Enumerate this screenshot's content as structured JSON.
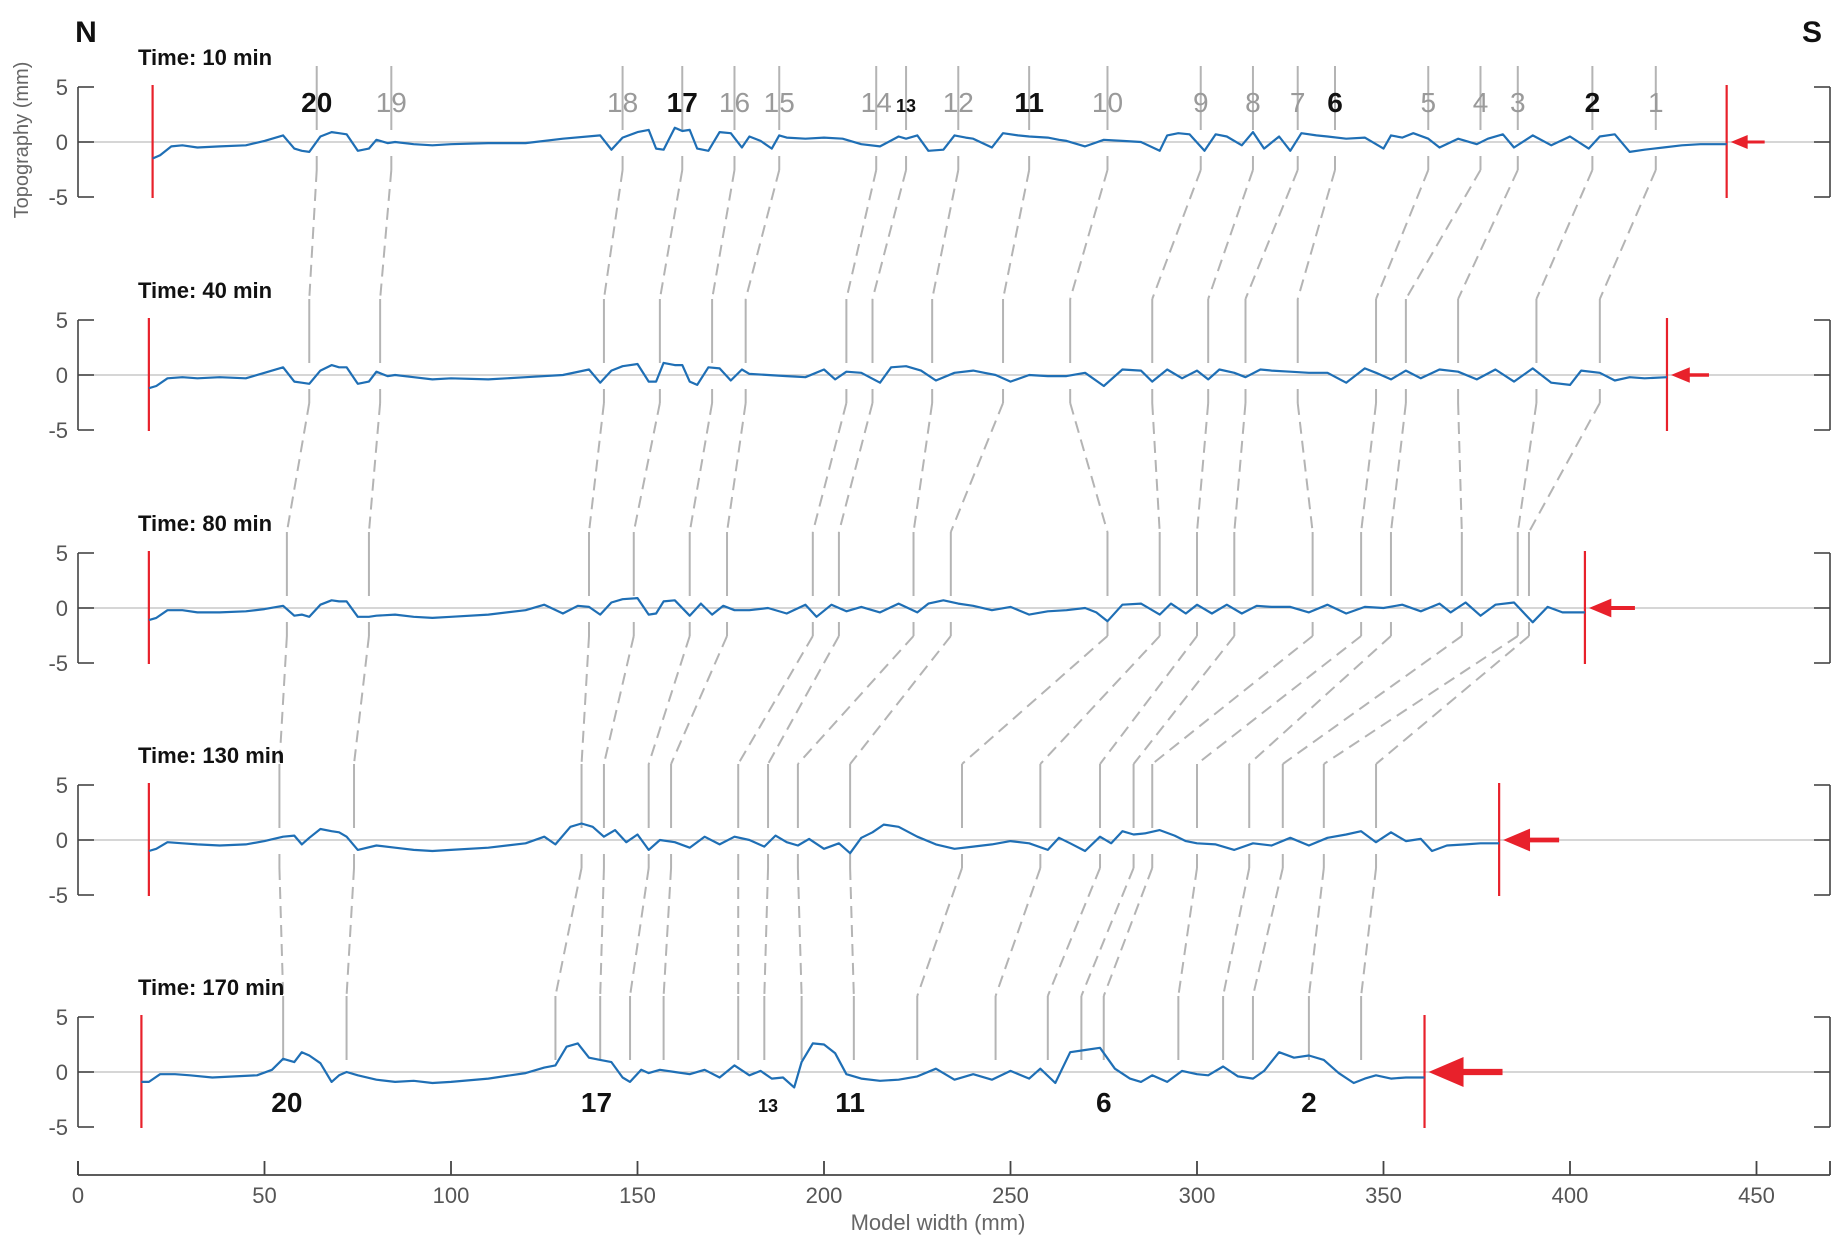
{
  "chart_data": {
    "type": "line",
    "north_label": "N",
    "south_label": "S",
    "xlabel": "Model width (mm)",
    "ylabel": "Topography (mm)",
    "xlim": [
      0,
      470
    ],
    "ylim": [
      -5,
      5
    ],
    "x_ticks": [
      0,
      50,
      100,
      150,
      200,
      250,
      300,
      350,
      400,
      450
    ],
    "y_ticks": [
      -5,
      0,
      5
    ],
    "colors": {
      "profile": "#1f6fb5",
      "backstop": "#e8212b",
      "correlation": "#b4b4b4",
      "axis": "#444444"
    },
    "panels": [
      {
        "title": "Time: 10 min",
        "left_wall": 20,
        "right_wall": 442,
        "arrow_size": 1,
        "x": [
          20,
          22,
          25,
          28,
          32,
          38,
          45,
          50,
          55,
          58,
          60,
          62,
          65,
          68,
          70,
          72,
          75,
          78,
          80,
          83,
          85,
          90,
          95,
          100,
          110,
          120,
          130,
          140,
          143,
          146,
          150,
          153,
          155,
          157,
          160,
          162,
          164,
          166,
          169,
          172,
          175,
          178,
          180,
          183,
          186,
          188,
          190,
          195,
          200,
          205,
          210,
          215,
          220,
          222,
          225,
          228,
          232,
          235,
          238,
          240,
          245,
          248,
          252,
          255,
          260,
          263,
          265,
          270,
          275,
          280,
          285,
          290,
          292,
          295,
          298,
          302,
          305,
          308,
          312,
          315,
          318,
          322,
          325,
          328,
          332,
          335,
          340,
          345,
          350,
          352,
          355,
          358,
          362,
          365,
          370,
          375,
          378,
          382,
          385,
          390,
          395,
          400,
          405,
          408,
          412,
          416,
          420,
          425,
          430,
          435,
          442
        ],
        "y": [
          -1.5,
          -1.2,
          -0.4,
          -0.3,
          -0.5,
          -0.4,
          -0.3,
          0.1,
          0.6,
          -0.6,
          -0.8,
          -0.9,
          0.5,
          0.9,
          0.8,
          0.7,
          -0.8,
          -0.6,
          0.2,
          -0.1,
          0.0,
          -0.2,
          -0.3,
          -0.2,
          -0.1,
          -0.1,
          0.3,
          0.6,
          -0.7,
          0.4,
          0.9,
          1.1,
          -0.6,
          -0.7,
          1.3,
          1.0,
          1.1,
          -0.6,
          -0.8,
          0.9,
          0.8,
          -0.5,
          0.5,
          0.1,
          -0.6,
          0.6,
          0.4,
          0.3,
          0.4,
          0.3,
          -0.2,
          -0.4,
          0.5,
          0.3,
          0.6,
          -0.8,
          -0.7,
          0.6,
          0.4,
          0.3,
          -0.5,
          0.8,
          0.6,
          0.5,
          0.4,
          0.2,
          0.1,
          -0.4,
          0.2,
          0.1,
          0.0,
          -0.8,
          0.6,
          0.8,
          0.7,
          -0.8,
          0.7,
          0.5,
          -0.3,
          0.9,
          -0.6,
          0.5,
          -0.8,
          0.8,
          0.6,
          0.5,
          0.3,
          0.4,
          -0.6,
          0.6,
          0.4,
          0.8,
          0.3,
          -0.5,
          0.3,
          -0.2,
          0.3,
          0.7,
          -0.5,
          0.6,
          -0.3,
          0.5,
          -0.6,
          0.5,
          0.7,
          -0.9,
          -0.7,
          -0.5,
          -0.3,
          -0.2,
          -0.2
        ]
      },
      {
        "title": "Time: 40 min",
        "left_wall": 19,
        "right_wall": 426,
        "arrow_size": 1.2,
        "x": [
          19,
          21,
          24,
          28,
          32,
          38,
          45,
          50,
          55,
          58,
          60,
          62,
          65,
          68,
          70,
          72,
          75,
          78,
          80,
          83,
          85,
          90,
          95,
          100,
          110,
          120,
          130,
          137,
          140,
          143,
          146,
          150,
          153,
          155,
          157,
          160,
          162,
          164,
          166,
          169,
          172,
          175,
          178,
          180,
          185,
          190,
          195,
          200,
          203,
          206,
          210,
          215,
          218,
          222,
          226,
          230,
          235,
          240,
          243,
          246,
          250,
          255,
          260,
          265,
          270,
          275,
          280,
          285,
          288,
          292,
          296,
          300,
          303,
          306,
          310,
          313,
          317,
          320,
          325,
          330,
          335,
          340,
          345,
          348,
          352,
          356,
          360,
          365,
          370,
          375,
          380,
          385,
          390,
          395,
          400,
          403,
          408,
          412,
          416,
          420,
          426
        ],
        "y": [
          -1.2,
          -1.0,
          -0.3,
          -0.2,
          -0.3,
          -0.2,
          -0.3,
          0.2,
          0.7,
          -0.6,
          -0.7,
          -0.8,
          0.4,
          0.9,
          0.7,
          0.7,
          -0.8,
          -0.6,
          0.3,
          -0.1,
          0.0,
          -0.2,
          -0.4,
          -0.3,
          -0.4,
          -0.2,
          0.0,
          0.5,
          -0.7,
          0.4,
          0.8,
          1.0,
          -0.6,
          -0.6,
          1.1,
          0.9,
          0.9,
          -0.6,
          -0.9,
          0.7,
          0.6,
          -0.5,
          0.5,
          0.1,
          0.0,
          -0.1,
          -0.2,
          0.5,
          -0.4,
          0.3,
          0.2,
          -0.7,
          0.7,
          0.8,
          0.4,
          -0.5,
          0.2,
          0.4,
          0.2,
          0.0,
          -0.6,
          0.0,
          -0.1,
          -0.1,
          0.2,
          -1.0,
          0.5,
          0.4,
          -0.6,
          0.5,
          -0.3,
          0.4,
          -0.4,
          0.5,
          0.2,
          -0.2,
          0.5,
          0.4,
          0.3,
          0.2,
          0.2,
          -0.7,
          0.6,
          0.2,
          -0.4,
          0.4,
          -0.3,
          0.5,
          0.3,
          -0.4,
          0.5,
          -0.6,
          0.6,
          -0.7,
          -0.9,
          0.4,
          0.2,
          -0.5,
          -0.2,
          -0.3,
          -0.2
        ]
      },
      {
        "title": "Time: 80 min",
        "left_wall": 19,
        "right_wall": 404,
        "arrow_size": 1.6,
        "x": [
          19,
          21,
          24,
          28,
          32,
          38,
          45,
          50,
          55,
          58,
          60,
          62,
          65,
          68,
          70,
          72,
          75,
          78,
          80,
          85,
          90,
          95,
          100,
          110,
          120,
          125,
          130,
          134,
          137,
          140,
          143,
          146,
          150,
          153,
          155,
          157,
          160,
          164,
          167,
          170,
          173,
          176,
          180,
          185,
          190,
          195,
          198,
          202,
          206,
          210,
          215,
          220,
          225,
          228,
          232,
          236,
          240,
          245,
          250,
          255,
          260,
          265,
          270,
          273,
          276,
          280,
          285,
          290,
          293,
          297,
          300,
          304,
          308,
          312,
          316,
          320,
          325,
          330,
          335,
          340,
          345,
          350,
          355,
          360,
          365,
          368,
          372,
          376,
          380,
          385,
          390,
          394,
          398,
          404
        ],
        "y": [
          -1.1,
          -0.9,
          -0.2,
          -0.2,
          -0.4,
          -0.4,
          -0.3,
          -0.1,
          0.2,
          -0.7,
          -0.6,
          -0.8,
          0.3,
          0.7,
          0.6,
          0.6,
          -0.8,
          -0.8,
          -0.7,
          -0.6,
          -0.8,
          -0.9,
          -0.8,
          -0.6,
          -0.2,
          0.3,
          -0.5,
          0.2,
          0.1,
          -0.6,
          0.5,
          0.8,
          0.9,
          -0.6,
          -0.5,
          0.6,
          0.7,
          -0.7,
          0.4,
          -0.6,
          0.2,
          -0.2,
          -0.2,
          0.0,
          -0.5,
          0.3,
          -0.8,
          0.3,
          -0.3,
          0.1,
          -0.4,
          0.4,
          -0.4,
          0.4,
          0.7,
          0.4,
          0.2,
          -0.2,
          0.1,
          -0.6,
          -0.3,
          -0.2,
          0.0,
          -0.4,
          -1.2,
          0.3,
          0.4,
          -0.6,
          0.4,
          -0.5,
          0.3,
          -0.5,
          0.3,
          -0.5,
          0.2,
          0.1,
          0.1,
          -0.4,
          0.3,
          -0.5,
          0.1,
          0.0,
          0.3,
          -0.3,
          0.4,
          -0.4,
          0.5,
          -0.7,
          0.3,
          0.5,
          -1.3,
          0.1,
          -0.4,
          -0.4
        ]
      },
      {
        "title": "Time: 130 min",
        "left_wall": 19,
        "right_wall": 381,
        "arrow_size": 2.1,
        "x": [
          19,
          21,
          24,
          28,
          32,
          38,
          45,
          50,
          55,
          58,
          60,
          62,
          65,
          68,
          70,
          72,
          75,
          80,
          85,
          90,
          95,
          100,
          110,
          120,
          125,
          128,
          132,
          135,
          138,
          141,
          144,
          147,
          150,
          153,
          156,
          160,
          164,
          168,
          172,
          176,
          180,
          184,
          187,
          190,
          193,
          196,
          200,
          204,
          207,
          210,
          213,
          216,
          220,
          225,
          230,
          235,
          240,
          245,
          250,
          255,
          260,
          263,
          266,
          270,
          274,
          277,
          280,
          283,
          286,
          290,
          294,
          297,
          300,
          305,
          310,
          315,
          320,
          325,
          330,
          335,
          340,
          344,
          348,
          352,
          356,
          360,
          363,
          367,
          372,
          376,
          381
        ],
        "y": [
          -1.0,
          -0.8,
          -0.2,
          -0.3,
          -0.4,
          -0.5,
          -0.4,
          -0.1,
          0.3,
          0.4,
          -0.4,
          0.2,
          1.0,
          0.8,
          0.7,
          0.3,
          -0.9,
          -0.5,
          -0.7,
          -0.9,
          -1.0,
          -0.9,
          -0.7,
          -0.3,
          0.3,
          -0.4,
          1.2,
          1.5,
          1.2,
          0.3,
          0.9,
          -0.2,
          0.5,
          -0.9,
          0.0,
          -0.2,
          -0.7,
          0.3,
          -0.4,
          0.3,
          0.0,
          -0.6,
          0.4,
          -0.2,
          -0.5,
          0.1,
          -0.8,
          -0.3,
          -1.2,
          0.2,
          0.7,
          1.4,
          1.2,
          0.3,
          -0.4,
          -0.8,
          -0.6,
          -0.4,
          -0.1,
          -0.3,
          -0.9,
          0.2,
          -0.3,
          -1.0,
          0.3,
          -0.3,
          0.8,
          0.5,
          0.6,
          0.9,
          0.4,
          -0.1,
          -0.3,
          -0.4,
          -0.9,
          -0.3,
          -0.5,
          0.2,
          -0.5,
          0.2,
          0.5,
          0.8,
          -0.2,
          0.7,
          -0.1,
          0.1,
          -1.0,
          -0.5,
          -0.4,
          -0.3,
          -0.3
        ]
      },
      {
        "title": "Time: 170 min",
        "left_wall": 17,
        "right_wall": 361,
        "arrow_size": 3,
        "x": [
          17,
          19,
          22,
          26,
          30,
          36,
          42,
          48,
          52,
          55,
          58,
          60,
          62,
          65,
          68,
          70,
          72,
          75,
          80,
          85,
          90,
          95,
          100,
          110,
          120,
          125,
          128,
          131,
          134,
          137,
          140,
          143,
          146,
          148,
          151,
          153,
          156,
          160,
          164,
          168,
          172,
          176,
          180,
          183,
          186,
          189,
          192,
          194,
          197,
          200,
          203,
          206,
          210,
          215,
          220,
          225,
          230,
          235,
          240,
          245,
          250,
          255,
          258,
          262,
          266,
          270,
          274,
          278,
          282,
          285,
          288,
          292,
          296,
          300,
          303,
          307,
          311,
          315,
          318,
          322,
          326,
          330,
          334,
          338,
          342,
          345,
          348,
          352,
          356,
          361
        ],
        "y": [
          -0.9,
          -0.9,
          -0.2,
          -0.2,
          -0.3,
          -0.5,
          -0.4,
          -0.3,
          0.2,
          1.2,
          0.9,
          1.8,
          1.5,
          0.8,
          -0.9,
          -0.3,
          0.0,
          -0.3,
          -0.7,
          -0.9,
          -0.8,
          -1.0,
          -0.9,
          -0.6,
          -0.1,
          0.4,
          0.6,
          2.3,
          2.6,
          1.3,
          1.1,
          0.9,
          -0.5,
          -0.9,
          0.2,
          -0.1,
          0.2,
          0.0,
          -0.2,
          0.2,
          -0.5,
          0.6,
          -0.3,
          0.1,
          -0.6,
          -0.5,
          -1.4,
          0.9,
          2.6,
          2.5,
          1.7,
          -0.2,
          -0.6,
          -0.8,
          -0.7,
          -0.4,
          0.3,
          -0.7,
          -0.2,
          -0.7,
          0.1,
          -0.6,
          0.3,
          -1.0,
          1.8,
          2.0,
          2.2,
          0.3,
          -0.6,
          -0.9,
          -0.3,
          -0.9,
          0.1,
          -0.2,
          -0.3,
          0.5,
          -0.4,
          -0.6,
          0.1,
          1.8,
          1.3,
          1.5,
          1.1,
          -0.1,
          -1.0,
          -0.6,
          -0.3,
          -0.6,
          -0.5,
          -0.5
        ]
      }
    ],
    "thrusts": [
      {
        "label": "20",
        "bold": true,
        "x": [
          64,
          62,
          56,
          54,
          55
        ]
      },
      {
        "label": "19",
        "bold": false,
        "x": [
          84,
          81,
          78,
          74,
          72
        ]
      },
      {
        "label": "18",
        "bold": false,
        "x": [
          146,
          141,
          137,
          135,
          128
        ]
      },
      {
        "label": "17",
        "bold": true,
        "x": [
          162,
          156,
          149,
          141,
          140
        ]
      },
      {
        "label": "16",
        "bold": false,
        "x": [
          176,
          170,
          164,
          153,
          148
        ]
      },
      {
        "label": "15",
        "bold": false,
        "x": [
          188,
          179,
          174,
          159,
          157
        ]
      },
      {
        "label": "14",
        "bold": false,
        "x": [
          214,
          206,
          197,
          177,
          177
        ]
      },
      {
        "label": "13",
        "bold": true,
        "small": true,
        "x": [
          222,
          213,
          204,
          185,
          184
        ]
      },
      {
        "label": "12",
        "bold": false,
        "x": [
          236,
          229,
          224,
          193,
          194
        ]
      },
      {
        "label": "11",
        "bold": true,
        "x": [
          255,
          248,
          234,
          207,
          208
        ]
      },
      {
        "label": "10",
        "bold": false,
        "x": [
          276,
          266,
          276,
          237,
          225
        ]
      },
      {
        "label": "9",
        "bold": false,
        "x": [
          301,
          288,
          290,
          258,
          246
        ]
      },
      {
        "label": "8",
        "bold": false,
        "x": [
          315,
          303,
          300,
          274,
          260
        ]
      },
      {
        "label": "7",
        "bold": false,
        "x": [
          327,
          313,
          310,
          283,
          269
        ]
      },
      {
        "label": "6",
        "bold": true,
        "x": [
          337,
          327,
          331,
          288,
          275
        ]
      },
      {
        "label": "5",
        "bold": false,
        "x": [
          362,
          348,
          344,
          300,
          295
        ]
      },
      {
        "label": "4",
        "bold": false,
        "x": [
          376,
          356,
          352,
          314,
          307
        ]
      },
      {
        "label": "3",
        "bold": false,
        "x": [
          386,
          370,
          371,
          323,
          315
        ]
      },
      {
        "label": "2",
        "bold": true,
        "x": [
          406,
          391,
          386,
          334,
          330
        ]
      },
      {
        "label": "1",
        "bold": false,
        "x": [
          423,
          408,
          389,
          348,
          344
        ]
      }
    ],
    "bottom_labels": [
      {
        "label": "20",
        "x": 56
      },
      {
        "label": "17",
        "x": 139
      },
      {
        "label": "13",
        "x": 185,
        "small": true
      },
      {
        "label": "11",
        "x": 207
      },
      {
        "label": "6",
        "x": 275
      },
      {
        "label": "2",
        "x": 330
      }
    ]
  }
}
